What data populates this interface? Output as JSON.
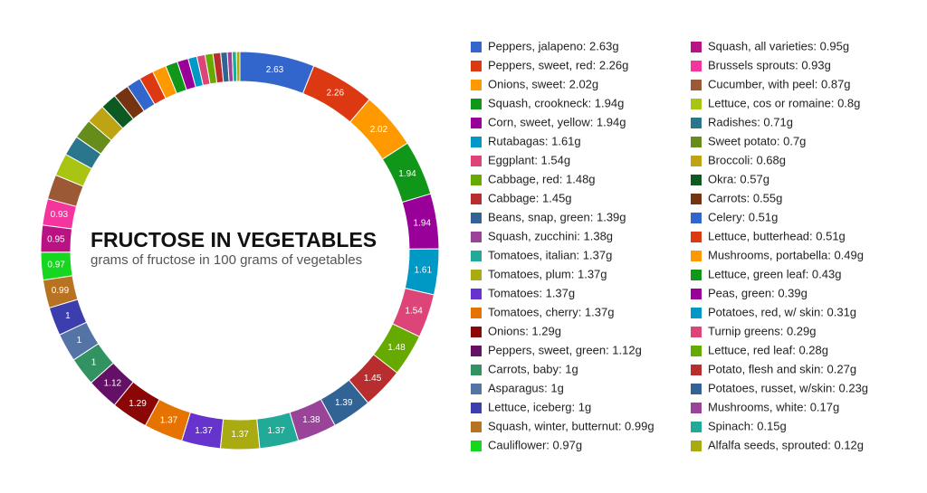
{
  "chart_data": {
    "type": "pie",
    "title": "FRUCTOSE IN VEGETABLES",
    "subtitle": "grams of fructose in 100 grams of vegetables",
    "categories": [
      "Peppers, jalapeno: 2.63g",
      "Peppers, sweet, red: 2.26g",
      "Onions, sweet: 2.02g",
      "Squash, crookneck: 1.94g",
      "Corn, sweet, yellow: 1.94g",
      "Rutabagas: 1.61g",
      "Eggplant: 1.54g",
      "Cabbage, red: 1.48g",
      "Cabbage: 1.45g",
      "Beans, snap, green: 1.39g",
      "Squash, zucchini: 1.38g",
      "Tomatoes, italian: 1.37g",
      "Tomatoes, plum: 1.37g",
      "Tomatoes: 1.37g",
      "Tomatoes, cherry: 1.37g",
      "Onions: 1.29g",
      "Peppers, sweet, green: 1.12g",
      "Carrots, baby: 1g",
      "Asparagus: 1g",
      "Lettuce, iceberg: 1g",
      "Squash, winter, butternut: 0.99g",
      "Cauliflower: 0.97g",
      "Squash, all varieties: 0.95g",
      "Brussels sprouts: 0.93g",
      "Cucumber, with peel: 0.87g",
      "Lettuce, cos or romaine: 0.8g",
      "Radishes: 0.71g",
      "Sweet potato: 0.7g",
      "Broccoli: 0.68g",
      "Okra: 0.57g",
      "Carrots: 0.55g",
      "Celery: 0.51g",
      "Lettuce, butterhead: 0.51g",
      "Mushrooms, portabella: 0.49g",
      "Lettuce, green leaf: 0.43g",
      "Peas, green: 0.39g",
      "Potatoes, red, w/ skin: 0.31g",
      "Turnip greens: 0.29g",
      "Lettuce, red leaf: 0.28g",
      "Potato, flesh and skin: 0.27g",
      "Potatoes, russet, w/skin: 0.23g",
      "Mushrooms, white: 0.17g",
      "Spinach: 0.15g",
      "Alfalfa seeds, sprouted: 0.12g"
    ],
    "values": [
      2.63,
      2.26,
      2.02,
      1.94,
      1.94,
      1.61,
      1.54,
      1.48,
      1.45,
      1.39,
      1.38,
      1.37,
      1.37,
      1.37,
      1.37,
      1.29,
      1.12,
      1,
      1,
      1,
      0.99,
      0.97,
      0.95,
      0.93,
      0.87,
      0.8,
      0.71,
      0.7,
      0.68,
      0.57,
      0.55,
      0.51,
      0.51,
      0.49,
      0.43,
      0.39,
      0.31,
      0.29,
      0.28,
      0.27,
      0.23,
      0.17,
      0.15,
      0.12
    ],
    "colors": [
      "#3366cc",
      "#dc3912",
      "#ff9900",
      "#109618",
      "#990099",
      "#0099c6",
      "#dd4477",
      "#66aa00",
      "#b82e2e",
      "#316395",
      "#994499",
      "#22aa99",
      "#aaaa11",
      "#6633cc",
      "#e67300",
      "#8b0707",
      "#651067",
      "#329262",
      "#5574a6",
      "#3b3eac",
      "#b77322",
      "#16d620",
      "#b91383",
      "#f4359e",
      "#9c5935",
      "#a9c413",
      "#2a778d",
      "#668d1c",
      "#bea413",
      "#0c5922",
      "#743411",
      "#3366cc",
      "#dc3912",
      "#ff9900",
      "#109618",
      "#990099",
      "#0099c6",
      "#dd4477",
      "#66aa00",
      "#b82e2e",
      "#316395",
      "#994499",
      "#22aa99",
      "#aaaa11"
    ]
  }
}
